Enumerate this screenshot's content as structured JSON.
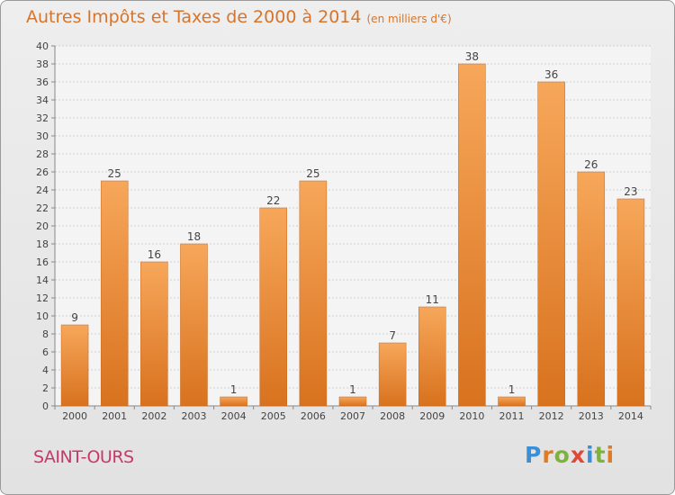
{
  "chart_data": {
    "type": "bar",
    "title": "Autres Impôts et Taxes de 2000 à 2014",
    "subtitle": "(en milliers d'€)",
    "categories": [
      "2000",
      "2001",
      "2002",
      "2003",
      "2004",
      "2005",
      "2006",
      "2007",
      "2008",
      "2009",
      "2010",
      "2011",
      "2012",
      "2013",
      "2014"
    ],
    "values": [
      9,
      25,
      16,
      18,
      1,
      22,
      25,
      1,
      7,
      11,
      38,
      1,
      36,
      26,
      23
    ],
    "ylim": [
      0,
      40
    ],
    "yticks": [
      0,
      2,
      4,
      6,
      8,
      10,
      12,
      14,
      16,
      18,
      20,
      22,
      24,
      26,
      28,
      30,
      32,
      34,
      36,
      38,
      40
    ],
    "grid": true,
    "bar_color": "#e8822a"
  },
  "commune": "SAINT-OURS",
  "logo": {
    "text": "Proxiti",
    "letter_colors": [
      "#3a8fd6",
      "#e07b24",
      "#7fb23a",
      "#e0493a",
      "#3a8fd6",
      "#7fb23a",
      "#e07b24"
    ]
  }
}
